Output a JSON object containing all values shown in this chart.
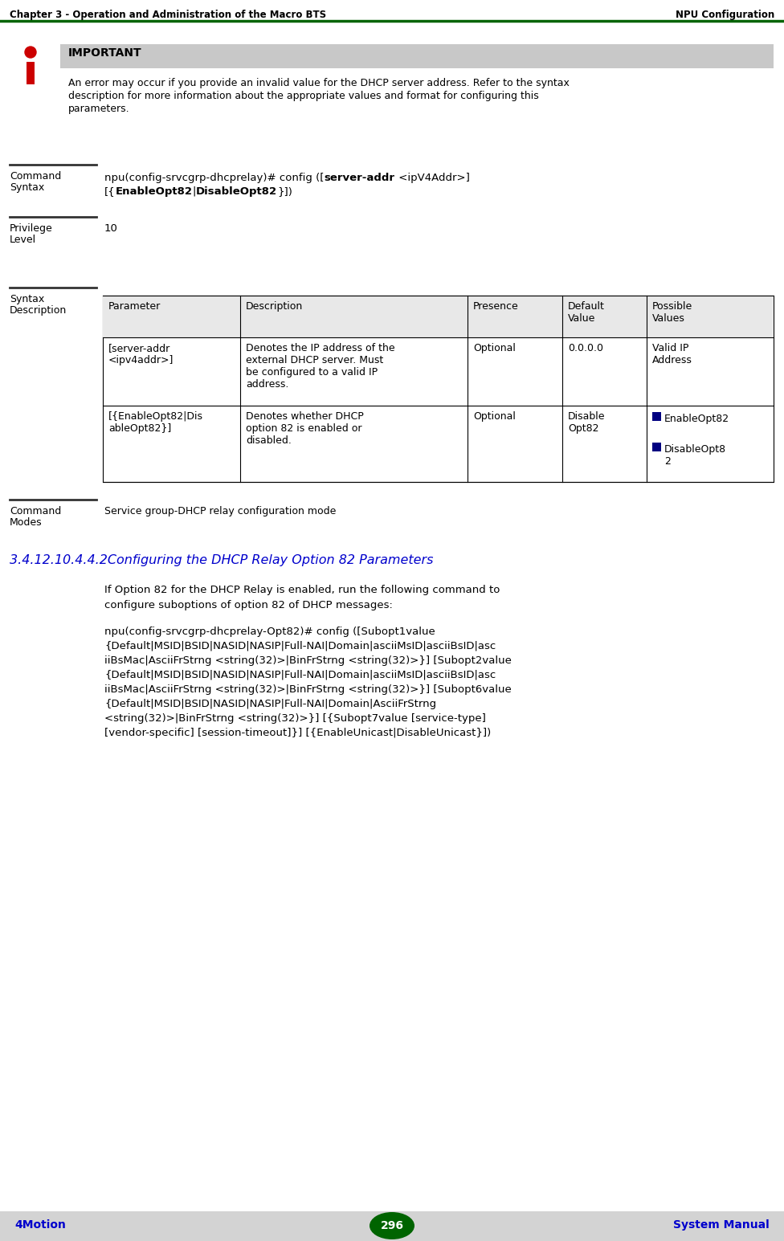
{
  "header_left": "Chapter 3 - Operation and Administration of the Macro BTS",
  "header_right": "NPU Configuration",
  "footer_left": "4Motion",
  "footer_center": "296",
  "footer_right": "System Manual",
  "header_line_color": "#006400",
  "footer_bg_color": "#d3d3d3",
  "important_bg_color": "#c8c8c8",
  "important_title": "IMPORTANT",
  "important_text_line1": "An error may occur if you provide an invalid value for the DHCP server address. Refer to the syntax",
  "important_text_line2": "description for more information about the appropriate values and format for configuring this",
  "important_text_line3": "parameters.",
  "command_syntax_label": "Command\nSyntax",
  "privilege_label": "Privilege\nLevel",
  "privilege_value": "10",
  "syntax_desc_label": "Syntax\nDescription",
  "table_headers": [
    "Parameter",
    "Description",
    "Presence",
    "Default\nValue",
    "Possible\nValues"
  ],
  "table_row1_col0": "[server-addr\n<ipv4addr>]",
  "table_row1_col1": "Denotes the IP address of the\nexternal DHCP server. Must\nbe configured to a valid IP\naddress.",
  "table_row1_col2": "Optional",
  "table_row1_col3": "0.0.0.0",
  "table_row1_col4": "Valid IP\nAddress",
  "table_row2_col0": "[{EnableOpt82|Dis\nableOpt82}]",
  "table_row2_col1": "Denotes whether DHCP\noption 82 is enabled or\ndisabled.",
  "table_row2_col2": "Optional",
  "table_row2_col3": "Disable\nOpt82",
  "table_row2_col4_items": [
    "EnableOpt82",
    "DisableOpt8\n2"
  ],
  "command_modes_label": "Command\nModes",
  "command_modes_value": "Service group-DHCP relay configuration mode",
  "section_title": "3.4.12.10.4.4.2Configuring the DHCP Relay Option 82 Parameters",
  "body_text1": "If Option 82 for the DHCP Relay is enabled, run the following command to\nconfigure suboptions of option 82 of DHCP messages:",
  "body_code_lines": [
    "npu(config-srvcgrp-dhcprelay-Opt82)# config ([Subopt1value",
    "{Default|MSID|BSID|NASID|NASIP|Full-NAI|Domain|asciiMsID|asciiBsID|asc",
    "iiBsMac|AsciiFrStrng <string(32)>|BinFrStrng <string(32)>}] [Subopt2value",
    "{Default|MSID|BSID|NASID|NASIP|Full-NAI|Domain|asciiMsID|asciiBsID|asc",
    "iiBsMac|AsciiFrStrng <string(32)>|BinFrStrng <string(32)>}] [Subopt6value",
    "{Default|MSID|BSID|NASID|NASIP|Full-NAI|Domain|AsciiFrStrng",
    "<string(32)>|BinFrStrng <string(32)>}] [{Subopt7value [service-type]",
    "[vendor-specific] [session-timeout]}] [{EnableUnicast|DisableUnicast}])"
  ],
  "bg_color": "#ffffff",
  "text_color": "#000000",
  "blue_color": "#0000cc",
  "green_dark": "#006400",
  "table_border_color": "#000000",
  "divider_line_color": "#333333",
  "divider_line_color2": "#aaaaaa",
  "navy_square": "#000080"
}
